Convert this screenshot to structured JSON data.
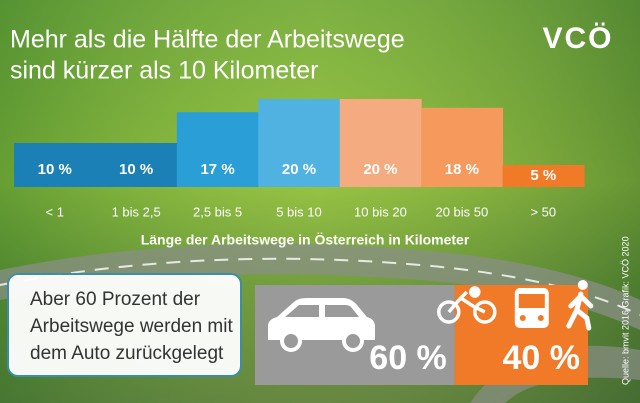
{
  "chart_data": {
    "type": "bar",
    "title": [
      "Mehr als die Hälfte der Arbeitswege",
      "sind kürzer als 10 Kilometer"
    ],
    "categories": [
      "< 1",
      "1 bis 2,5",
      "2,5 bis 5",
      "5 bis 10",
      "10 bis 20",
      "20 bis 50",
      "> 50"
    ],
    "values": [
      10,
      10,
      17,
      20,
      20,
      18,
      5
    ],
    "value_labels": [
      "10 %",
      "10 %",
      "17 %",
      "20 %",
      "20 %",
      "18 %",
      "5 %"
    ],
    "colors": [
      "#1b80b6",
      "#1b80b6",
      "#2a9ed6",
      "#4fb2e0",
      "#f5ab80",
      "#f59a5c",
      "#f07a28"
    ],
    "x_label": "Länge der Arbeitswege in Österreich in Kilometer"
  },
  "logo": "VCÖ",
  "note": [
    "Aber 60 Prozent der",
    "Arbeitswege werden mit",
    "dem Auto zurückgelegt"
  ],
  "modal_split": {
    "values": [
      60,
      40
    ],
    "value_labels": [
      "60 %",
      "40 %"
    ],
    "colors": [
      "#9a9a9a",
      "#f07a28"
    ]
  },
  "source": "Quelle: bmvit 2016 Grafik: VCÖ 2020"
}
